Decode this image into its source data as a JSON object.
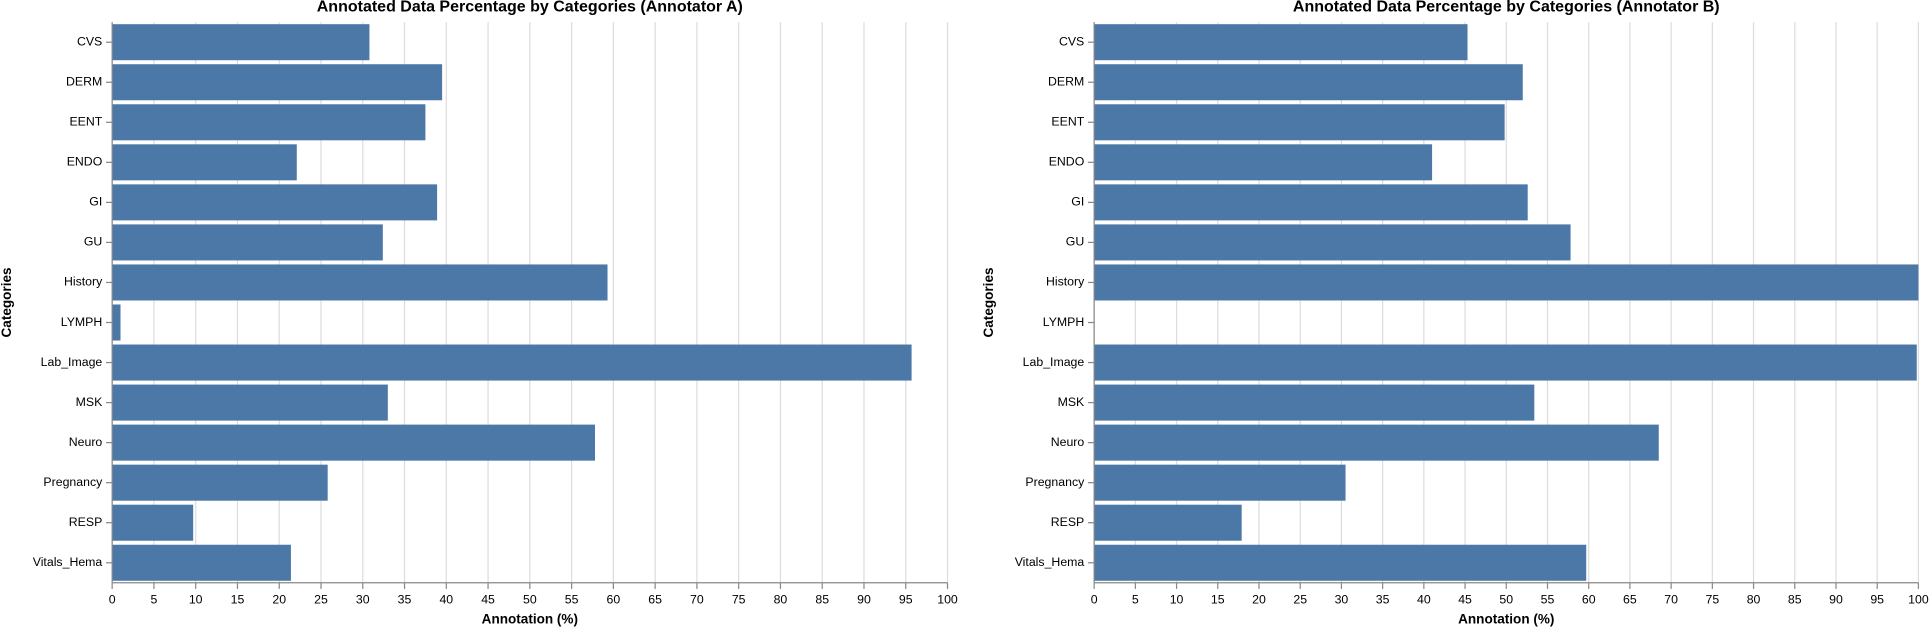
{
  "chart_data": [
    {
      "type": "bar",
      "orientation": "horizontal",
      "title": "Annotated Data Percentage by Categories (Annotator A)",
      "x_label": "Annotation (%)",
      "y_label": "Categories",
      "categories": [
        "CVS",
        "DERM",
        "EENT",
        "ENDO",
        "GI",
        "GU",
        "History",
        "LYMPH",
        "Lab_Image",
        "MSK",
        "Neuro",
        "Pregnancy",
        "RESP",
        "Vitals_Hema"
      ],
      "values": [
        30.8,
        39.5,
        37.5,
        22.1,
        38.9,
        32.4,
        59.3,
        1.0,
        95.7,
        33.0,
        57.8,
        25.8,
        9.7,
        21.4
      ],
      "color": "#4c78a8",
      "xlim": [
        0,
        100
      ],
      "xticks": [
        0,
        5,
        10,
        15,
        20,
        25,
        30,
        35,
        40,
        45,
        50,
        55,
        60,
        65,
        70,
        75,
        80,
        85,
        90,
        95,
        100
      ],
      "grid": true
    },
    {
      "type": "bar",
      "orientation": "horizontal",
      "title": "Annotated Data Percentage by Categories (Annotator B)",
      "x_label": "Annotation (%)",
      "y_label": "Categories",
      "categories": [
        "CVS",
        "DERM",
        "EENT",
        "ENDO",
        "GI",
        "GU",
        "History",
        "LYMPH",
        "Lab_Image",
        "MSK",
        "Neuro",
        "Pregnancy",
        "RESP",
        "Vitals_Hema"
      ],
      "values": [
        45.3,
        52.0,
        49.8,
        41.0,
        52.6,
        57.8,
        100,
        0,
        99.8,
        53.4,
        68.5,
        30.5,
        17.9,
        59.7
      ],
      "color": "#4c78a8",
      "xlim": [
        0,
        100
      ],
      "xticks": [
        0,
        5,
        10,
        15,
        20,
        25,
        30,
        35,
        40,
        45,
        50,
        55,
        60,
        65,
        70,
        75,
        80,
        85,
        90,
        95,
        100
      ],
      "grid": true
    }
  ]
}
